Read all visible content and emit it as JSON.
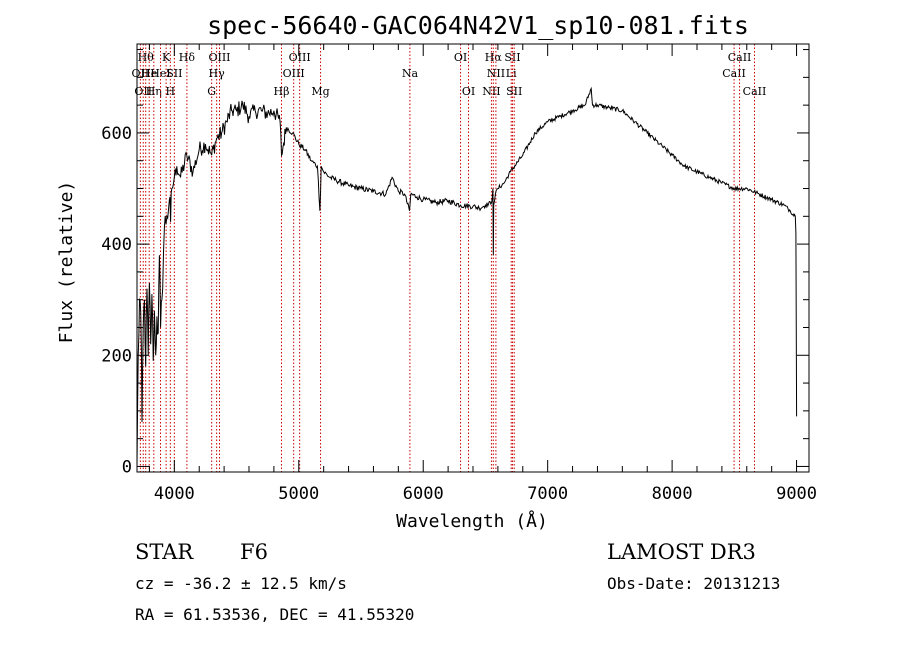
{
  "chart_data": {
    "type": "line",
    "title": "spec-56640-GAC064N42V1_sp10-081.fits",
    "xlabel": "Wavelength (Å)",
    "ylabel": "Flux (relative)",
    "xlim": [
      3700,
      9100
    ],
    "ylim": [
      -10,
      760
    ],
    "xticks": [
      4000,
      5000,
      6000,
      7000,
      8000,
      9000
    ],
    "yticks": [
      0,
      200,
      400,
      600
    ],
    "series": [
      {
        "name": "flux",
        "x": [
          3700,
          3710,
          3720,
          3730,
          3740,
          3750,
          3760,
          3770,
          3780,
          3790,
          3800,
          3810,
          3820,
          3830,
          3840,
          3850,
          3860,
          3870,
          3880,
          3890,
          3900,
          3920,
          3940,
          3960,
          3970,
          3980,
          4000,
          4020,
          4050,
          4100,
          4150,
          4200,
          4250,
          4300,
          4340,
          4380,
          4420,
          4460,
          4500,
          4550,
          4600,
          4650,
          4700,
          4750,
          4800,
          4850,
          4861,
          4900,
          4950,
          5000,
          5050,
          5100,
          5150,
          5170,
          5180,
          5200,
          5250,
          5300,
          5400,
          5500,
          5600,
          5700,
          5750,
          5800,
          5850,
          5890,
          5900,
          5950,
          6000,
          6100,
          6200,
          6300,
          6400,
          6450,
          6500,
          6550,
          6560,
          6563,
          6566,
          6580,
          6600,
          6650,
          6700,
          6800,
          6900,
          7000,
          7100,
          7200,
          7300,
          7350,
          7360,
          7400,
          7500,
          7600,
          7700,
          7800,
          7900,
          8000,
          8100,
          8200,
          8300,
          8400,
          8500,
          8600,
          8700,
          8800,
          8900,
          8950,
          8990,
          8995,
          9000
        ],
        "y": [
          0,
          200,
          300,
          280,
          80,
          250,
          300,
          180,
          320,
          200,
          330,
          220,
          310,
          190,
          280,
          200,
          270,
          240,
          380,
          250,
          300,
          430,
          450,
          480,
          440,
          500,
          520,
          540,
          520,
          560,
          530,
          570,
          580,
          560,
          590,
          600,
          620,
          640,
          640,
          650,
          630,
          640,
          640,
          635,
          640,
          620,
          560,
          610,
          600,
          580,
          570,
          550,
          540,
          460,
          540,
          530,
          520,
          515,
          505,
          500,
          495,
          490,
          520,
          495,
          490,
          460,
          490,
          485,
          480,
          475,
          478,
          470,
          468,
          465,
          470,
          475,
          500,
          380,
          470,
          490,
          500,
          510,
          530,
          560,
          600,
          620,
          630,
          640,
          650,
          680,
          650,
          650,
          645,
          640,
          620,
          600,
          580,
          560,
          540,
          530,
          520,
          510,
          500,
          500,
          490,
          480,
          470,
          460,
          450,
          420,
          90
        ]
      }
    ],
    "emission_lines": [
      {
        "wave": 3727,
        "label": "OII",
        "row": 2
      },
      {
        "wave": 3750,
        "label": "OII",
        "row": 3
      },
      {
        "wave": 3770,
        "label": "Hθ",
        "row": 1
      },
      {
        "wave": 3798,
        "label": "He",
        "row": 2
      },
      {
        "wave": 3835,
        "label": "Hη",
        "row": 3
      },
      {
        "wave": 3889,
        "label": "HeI",
        "row": 2
      },
      {
        "wave": 3934,
        "label": "K",
        "row": 1
      },
      {
        "wave": 3968,
        "label": "H",
        "row": 3
      },
      {
        "wave": 4000,
        "label": "SII",
        "row": 2
      },
      {
        "wave": 4101,
        "label": "Hδ",
        "row": 1
      },
      {
        "wave": 4300,
        "label": "G",
        "row": 3
      },
      {
        "wave": 4340,
        "label": "Hγ",
        "row": 2
      },
      {
        "wave": 4363,
        "label": "OIII",
        "row": 1
      },
      {
        "wave": 4861,
        "label": "Hβ",
        "row": 3
      },
      {
        "wave": 4959,
        "label": "OIII",
        "row": 2
      },
      {
        "wave": 5007,
        "label": "OIII",
        "row": 1
      },
      {
        "wave": 5175,
        "label": "Mg",
        "row": 3
      },
      {
        "wave": 5893,
        "label": "Na",
        "row": 2
      },
      {
        "wave": 6300,
        "label": "OI",
        "row": 1
      },
      {
        "wave": 6364,
        "label": "OI",
        "row": 3
      },
      {
        "wave": 6548,
        "label": "NII",
        "row": 3
      },
      {
        "wave": 6563,
        "label": "Hα",
        "row": 1
      },
      {
        "wave": 6584,
        "label": "NII",
        "row": 2
      },
      {
        "wave": 6707,
        "label": "Li",
        "row": 2
      },
      {
        "wave": 6717,
        "label": "SII",
        "row": 1
      },
      {
        "wave": 6731,
        "label": "SII",
        "row": 3
      },
      {
        "wave": 8498,
        "label": "CaII",
        "row": 2
      },
      {
        "wave": 8542,
        "label": "CaII",
        "row": 1
      },
      {
        "wave": 8662,
        "label": "CaII",
        "row": 3
      }
    ]
  },
  "info": {
    "object_class": "STAR",
    "subclass": "F6",
    "survey": "LAMOST DR3",
    "velocity": "cz = -36.2 ± 12.5 km/s",
    "obs_date": "Obs-Date: 20131213",
    "coordinates": "RA =  61.53536, DEC =  41.55320"
  },
  "colors": {
    "spectrum": "#000000",
    "line_marker": "#cc0000",
    "axes": "#000000",
    "background": "#ffffff"
  }
}
